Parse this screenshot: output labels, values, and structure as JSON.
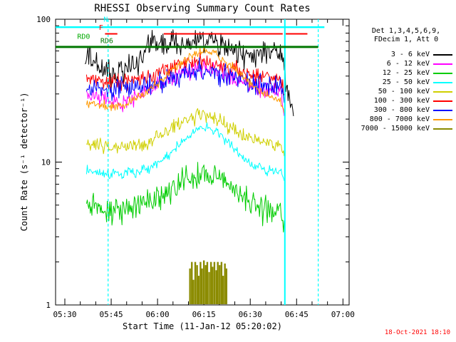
{
  "footer": {
    "timestamp": "18-Oct-2021 18:10",
    "timestamp_color": "#ff0000"
  },
  "chart_data": {
    "type": "line",
    "title": "RHESSI Observing Summary Count Rates",
    "xlabel": "Start Time (11-Jan-12 05:20:02)",
    "ylabel": "Count Rate (s⁻¹ detector⁻¹)",
    "y_scale": "log",
    "ylim": [
      1,
      100
    ],
    "x_range_minutes_after_0520": [
      7,
      102
    ],
    "x_ticks": [
      {
        "m": 10,
        "label": "05:30"
      },
      {
        "m": 25,
        "label": "05:45"
      },
      {
        "m": 40,
        "label": "06:00"
      },
      {
        "m": 55,
        "label": "06:15"
      },
      {
        "m": 70,
        "label": "06:30"
      },
      {
        "m": 85,
        "label": "06:45"
      },
      {
        "m": 100,
        "label": "07:00"
      }
    ],
    "x_minor_step": 5,
    "y_ticks": [
      {
        "v": 1,
        "label": "1"
      },
      {
        "v": 10,
        "label": "10"
      },
      {
        "v": 100,
        "label": "100"
      }
    ],
    "legend": {
      "header": [
        "Det 1,3,4,5,6,9,",
        "FDecim 1, Att 0"
      ]
    },
    "series": [
      {
        "name": "3 - 6 keV",
        "color": "#000000",
        "noise": 0.09,
        "points": [
          [
            16.5,
            46
          ],
          [
            18,
            55
          ],
          [
            20,
            50
          ],
          [
            22,
            44
          ],
          [
            25,
            40
          ],
          [
            28,
            42
          ],
          [
            31,
            46
          ],
          [
            34,
            53
          ],
          [
            36,
            60
          ],
          [
            38,
            72
          ],
          [
            40,
            63
          ],
          [
            43,
            67
          ],
          [
            46,
            69
          ],
          [
            49,
            66
          ],
          [
            52,
            70
          ],
          [
            55,
            68
          ],
          [
            58,
            70
          ],
          [
            61,
            65
          ],
          [
            64,
            60
          ],
          [
            67,
            57
          ],
          [
            70,
            55
          ],
          [
            73,
            57
          ],
          [
            76,
            60
          ],
          [
            79,
            58
          ],
          [
            80.5,
            53
          ],
          [
            81,
            42
          ],
          [
            82,
            33
          ],
          [
            83,
            26
          ],
          [
            84,
            21
          ]
        ]
      },
      {
        "name": "6 - 12 keV",
        "color": "#ff00ff",
        "noise": 0.06,
        "points": [
          [
            17,
            30
          ],
          [
            20,
            29
          ],
          [
            24,
            27
          ],
          [
            28,
            26
          ],
          [
            32,
            28
          ],
          [
            36,
            30
          ],
          [
            40,
            34
          ],
          [
            44,
            38
          ],
          [
            48,
            42
          ],
          [
            52,
            44
          ],
          [
            55,
            45
          ],
          [
            58,
            44
          ],
          [
            61,
            41
          ],
          [
            64,
            38
          ],
          [
            67,
            36
          ],
          [
            70,
            34
          ],
          [
            74,
            32
          ],
          [
            77,
            33
          ],
          [
            80,
            31
          ],
          [
            81,
            21
          ]
        ]
      },
      {
        "name": "12 - 25 keV",
        "color": "#00cc00",
        "noise": 0.1,
        "points": [
          [
            17,
            5.0
          ],
          [
            20,
            4.8
          ],
          [
            24,
            4.5
          ],
          [
            28,
            4.4
          ],
          [
            32,
            4.6
          ],
          [
            36,
            5.0
          ],
          [
            40,
            5.6
          ],
          [
            44,
            6.4
          ],
          [
            48,
            7.3
          ],
          [
            52,
            7.9
          ],
          [
            55,
            8.2
          ],
          [
            58,
            8.0
          ],
          [
            61,
            7.4
          ],
          [
            64,
            6.6
          ],
          [
            67,
            5.9
          ],
          [
            70,
            5.3
          ],
          [
            74,
            4.9
          ],
          [
            77,
            4.7
          ],
          [
            80,
            4.6
          ],
          [
            81,
            3.9
          ]
        ]
      },
      {
        "name": "25 - 50 keV",
        "color": "#00ffff",
        "noise": 0.035,
        "points": [
          [
            17,
            8.6
          ],
          [
            20,
            8.5
          ],
          [
            24,
            8.4
          ],
          [
            28,
            8.3
          ],
          [
            32,
            8.4
          ],
          [
            36,
            8.8
          ],
          [
            40,
            9.8
          ],
          [
            44,
            11.5
          ],
          [
            48,
            14
          ],
          [
            52,
            16.5
          ],
          [
            55,
            17.6
          ],
          [
            58,
            17
          ],
          [
            61,
            15
          ],
          [
            64,
            12.8
          ],
          [
            67,
            11
          ],
          [
            70,
            9.8
          ],
          [
            74,
            9.0
          ],
          [
            77,
            8.7
          ],
          [
            80,
            8.5
          ],
          [
            81,
            7.4
          ]
        ]
      },
      {
        "name": "50 - 100 keV",
        "color": "#cfcf00",
        "noise": 0.05,
        "points": [
          [
            17,
            13.5
          ],
          [
            20,
            13.2
          ],
          [
            24,
            12.8
          ],
          [
            28,
            12.6
          ],
          [
            32,
            12.9
          ],
          [
            36,
            13.6
          ],
          [
            40,
            15
          ],
          [
            44,
            16.8
          ],
          [
            48,
            18.8
          ],
          [
            52,
            20.3
          ],
          [
            55,
            21
          ],
          [
            58,
            20.4
          ],
          [
            61,
            19
          ],
          [
            64,
            17.4
          ],
          [
            67,
            16
          ],
          [
            70,
            14.9
          ],
          [
            74,
            13.9
          ],
          [
            77,
            13.4
          ],
          [
            80,
            13
          ],
          [
            81,
            11
          ]
        ]
      },
      {
        "name": "100 - 300 keV",
        "color": "#ff0000",
        "noise": 0.06,
        "points": [
          [
            17,
            38
          ],
          [
            20,
            37.5
          ],
          [
            24,
            36.5
          ],
          [
            28,
            36
          ],
          [
            32,
            37
          ],
          [
            36,
            39
          ],
          [
            40,
            42
          ],
          [
            44,
            45
          ],
          [
            48,
            48
          ],
          [
            52,
            49.5
          ],
          [
            55,
            50
          ],
          [
            58,
            49
          ],
          [
            61,
            47
          ],
          [
            64,
            45
          ],
          [
            67,
            43
          ],
          [
            70,
            41.5
          ],
          [
            74,
            40
          ],
          [
            77,
            39
          ],
          [
            80,
            38
          ],
          [
            81,
            30
          ]
        ]
      },
      {
        "name": "300 - 800 keV",
        "color": "#0000ff",
        "noise": 0.08,
        "points": [
          [
            17,
            35
          ],
          [
            20,
            34
          ],
          [
            24,
            33
          ],
          [
            28,
            32.5
          ],
          [
            32,
            33
          ],
          [
            36,
            34.5
          ],
          [
            40,
            36.5
          ],
          [
            44,
            39
          ],
          [
            48,
            41
          ],
          [
            52,
            42.5
          ],
          [
            55,
            43
          ],
          [
            58,
            42
          ],
          [
            61,
            40.5
          ],
          [
            64,
            39
          ],
          [
            67,
            37.5
          ],
          [
            70,
            36
          ],
          [
            74,
            34.5
          ],
          [
            77,
            34
          ],
          [
            80,
            33
          ],
          [
            81,
            26
          ]
        ]
      },
      {
        "name": "800 - 7000 keV",
        "color": "#ff9900",
        "noise": 0.03,
        "points": [
          [
            17,
            26
          ],
          [
            20,
            25.5
          ],
          [
            24,
            24.5
          ],
          [
            28,
            25
          ],
          [
            32,
            27
          ],
          [
            36,
            30
          ],
          [
            40,
            35
          ],
          [
            44,
            42
          ],
          [
            48,
            50
          ],
          [
            52,
            57
          ],
          [
            55,
            60
          ],
          [
            58,
            58
          ],
          [
            61,
            53
          ],
          [
            64,
            47
          ],
          [
            67,
            41
          ],
          [
            70,
            36
          ],
          [
            74,
            31
          ],
          [
            77,
            28.5
          ],
          [
            80,
            27
          ],
          [
            81,
            22
          ]
        ]
      },
      {
        "name": "7000 - 15000 keV",
        "color": "#8b8b00",
        "noise": 0,
        "spikes": [
          [
            50.5,
            1.8
          ],
          [
            51.1,
            2.0
          ],
          [
            51.6,
            1.5
          ],
          [
            52.2,
            2.0
          ],
          [
            52.8,
            1.9
          ],
          [
            53.3,
            1.6
          ],
          [
            53.9,
            2.0
          ],
          [
            54.4,
            1.8
          ],
          [
            55.0,
            2.05
          ],
          [
            55.6,
            1.9
          ],
          [
            56.1,
            2.0
          ],
          [
            56.7,
            1.7
          ],
          [
            57.3,
            2.0
          ],
          [
            57.8,
            1.85
          ],
          [
            58.4,
            2.0
          ],
          [
            59.0,
            1.75
          ],
          [
            59.5,
            2.0
          ],
          [
            60.1,
            1.9
          ],
          [
            60.7,
            2.0
          ],
          [
            61.2,
            1.6
          ],
          [
            61.8,
            1.95
          ],
          [
            62.3,
            1.8
          ]
        ]
      }
    ],
    "flags": {
      "hlines": [
        {
          "name": "night-flag-line",
          "color": "#00ffff",
          "v": 88,
          "from": 7,
          "to": 94,
          "w": 2.5
        },
        {
          "name": "flare-flag-line",
          "color": "#ff0000",
          "v": 79,
          "from": 23,
          "to": 27,
          "w": 2
        },
        {
          "name": "flare-flag-line",
          "color": "#ff0000",
          "v": 79,
          "from": 42,
          "to": 80.5,
          "w": 2
        },
        {
          "name": "flare-flag-line",
          "color": "#ff0000",
          "v": 79,
          "from": 81.5,
          "to": 88.5,
          "w": 2
        },
        {
          "name": "rate-decim-line",
          "color": "#007700",
          "v": 64,
          "from": 7,
          "to": 92,
          "w": 3
        }
      ],
      "vlines": [
        {
          "color": "#00ffff",
          "m": 24,
          "style": "dashed"
        },
        {
          "color": "#00ffff",
          "m": 81.2,
          "style": "solid"
        },
        {
          "color": "#00ffff",
          "m": 92,
          "style": "dashed"
        }
      ],
      "labels": [
        {
          "text": "N",
          "color": "#00ffff",
          "m": 22.5,
          "v": 96
        },
        {
          "text": "F",
          "color": "#ff0000",
          "m": 21,
          "v": 84
        },
        {
          "text": "RD0",
          "color": "#00aa00",
          "m": 14,
          "v": 73
        },
        {
          "text": "RD6",
          "color": "#007700",
          "m": 21.5,
          "v": 68
        }
      ]
    }
  }
}
